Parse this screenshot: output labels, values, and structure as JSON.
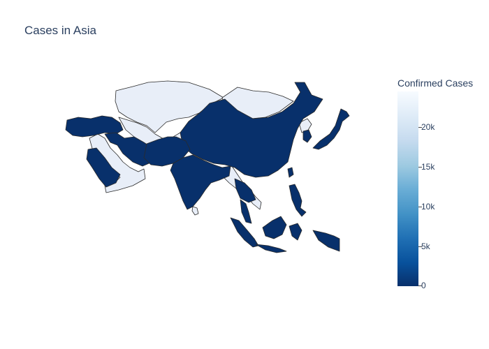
{
  "title": "Cases in Asia",
  "colorbar": {
    "title": "Confirmed Cases",
    "ticks": [
      "20k",
      "15k",
      "10k",
      "5k",
      "0"
    ]
  },
  "colors": {
    "low": "#08306b",
    "high": "#e8eef8",
    "border": "#2a2a2a"
  },
  "map_regions": [
    {
      "name": "Turkey",
      "level": "low"
    },
    {
      "name": "Iran",
      "level": "low"
    },
    {
      "name": "Saudi Arabia",
      "level": "low"
    },
    {
      "name": "Yemen",
      "level": "high"
    },
    {
      "name": "Oman",
      "level": "high"
    },
    {
      "name": "Pakistan",
      "level": "low"
    },
    {
      "name": "India",
      "level": "low"
    },
    {
      "name": "China",
      "level": "low"
    },
    {
      "name": "Kazakhstan",
      "level": "high"
    },
    {
      "name": "Mongolia",
      "level": "high"
    },
    {
      "name": "Japan",
      "level": "low"
    },
    {
      "name": "Korea",
      "level": "low"
    },
    {
      "name": "Southeast Asia",
      "level": "low"
    },
    {
      "name": "Indonesia",
      "level": "low"
    },
    {
      "name": "Philippines",
      "level": "low"
    }
  ]
}
